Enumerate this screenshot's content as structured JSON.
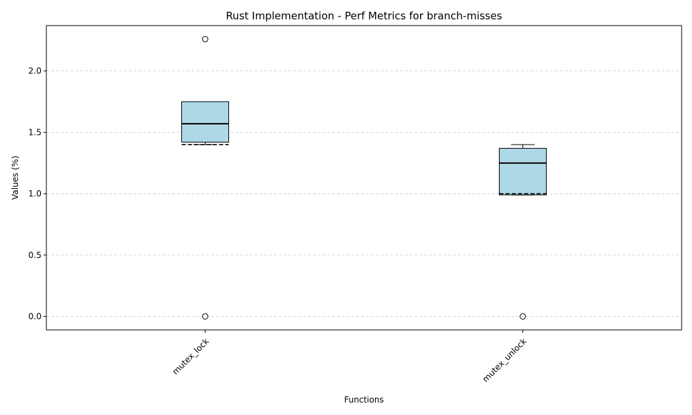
{
  "chart_data": {
    "type": "box",
    "title": "Rust Implementation - Perf Metrics for branch-misses",
    "xlabel": "Functions",
    "ylabel": "Values (%)",
    "ylim": [
      -0.11,
      2.37
    ],
    "yticks": [
      0.0,
      0.5,
      1.0,
      1.5,
      2.0
    ],
    "ytick_labels": [
      "0.0",
      "0.5",
      "1.0",
      "1.5",
      "2.0"
    ],
    "grid": "y-dashed",
    "categories": [
      "mutex_lock",
      "mutex_unlock"
    ],
    "boxes": [
      {
        "name": "mutex_lock",
        "whisker_low": 1.4,
        "q1": 1.42,
        "median": 1.57,
        "mean": 1.4,
        "q3": 1.75,
        "whisker_high": 1.75,
        "outliers": [
          2.26,
          0.0
        ]
      },
      {
        "name": "mutex_unlock",
        "whisker_low": 0.99,
        "q1": 0.99,
        "median": 1.25,
        "mean": 1.0,
        "q3": 1.37,
        "whisker_high": 1.4,
        "outliers": [
          0.0
        ]
      }
    ],
    "colors": {
      "box_fill": "#add8e6",
      "box_edge": "#000000",
      "grid": "#c8c8c8"
    }
  }
}
